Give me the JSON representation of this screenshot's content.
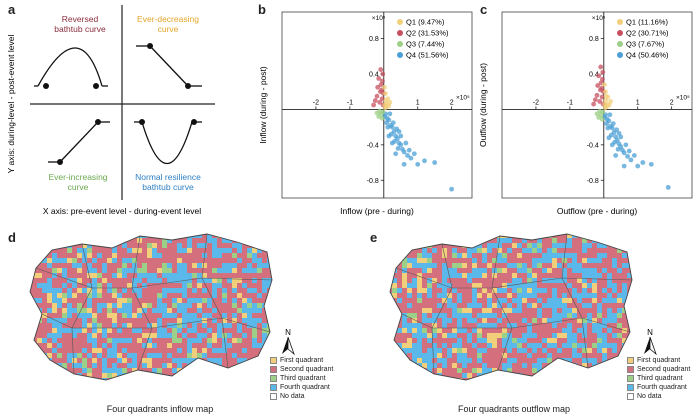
{
  "panel_letters": [
    "a",
    "b",
    "c",
    "d",
    "e"
  ],
  "panel_a": {
    "y_axis_label": "Y axis: during-level  -  post-event level",
    "x_axis_label": "X axis: pre-event level  -  during-event level",
    "quadrants": [
      {
        "label_lines": [
          "Reversed",
          "bathtub curve"
        ],
        "color": "#8a2d3b"
      },
      {
        "label_lines": [
          "Ever-decreasing",
          "curve"
        ],
        "color": "#e3a52a"
      },
      {
        "label_lines": [
          "Ever-increasing",
          "curve"
        ],
        "color": "#6ba84f"
      },
      {
        "label_lines": [
          "Normal resilience",
          "bathtub curve"
        ],
        "color": "#2b7fc4"
      }
    ]
  },
  "chart_data": [
    {
      "type": "scatter",
      "xlabel": "Inflow (pre - during)",
      "ylabel": "Inflow (during - post)",
      "x_exponent": "×10⁵",
      "y_exponent": "×10⁵",
      "xlim": [
        -3,
        2.6
      ],
      "ylim": [
        -1,
        1.1
      ],
      "x_ticks": [
        -2,
        -1,
        1,
        2
      ],
      "y_ticks": [
        0.8,
        0.4,
        -0.4,
        -0.8
      ],
      "x_tick_labels": [
        "-2",
        "-1",
        "1",
        "2"
      ],
      "y_tick_labels": [
        "0.8",
        "0.4",
        "-0.4",
        "-0.8"
      ],
      "legend_position": "top-right",
      "series": [
        {
          "name": "Q1",
          "legend": "Q1  (9.47%)",
          "color": "#f2cf7a"
        },
        {
          "name": "Q2",
          "legend": "Q2  (31.53%)",
          "color": "#c7505f"
        },
        {
          "name": "Q3",
          "legend": "Q3  (7.44%)",
          "color": "#9ccf87"
        },
        {
          "name": "Q4",
          "legend": "Q4  (51.56%)",
          "color": "#4a9fd6"
        }
      ],
      "points": {
        "Q1": [
          [
            0.03,
            0.05
          ],
          [
            0.06,
            0.1
          ],
          [
            0.1,
            0.06
          ],
          [
            0.05,
            0.18
          ],
          [
            0.12,
            0.12
          ],
          [
            0.08,
            0.03
          ],
          [
            0.15,
            0.04
          ],
          [
            0.02,
            0.25
          ],
          [
            0.04,
            0.02
          ],
          [
            0.18,
            0.08
          ]
        ],
        "Q2": [
          [
            -0.02,
            0.05
          ],
          [
            -0.05,
            0.12
          ],
          [
            -0.1,
            0.2
          ],
          [
            -0.08,
            0.28
          ],
          [
            -0.15,
            0.35
          ],
          [
            -0.03,
            0.4
          ],
          [
            -0.2,
            0.15
          ],
          [
            -0.12,
            0.08
          ],
          [
            -0.06,
            0.22
          ],
          [
            -0.25,
            0.1
          ],
          [
            -0.04,
            0.32
          ],
          [
            -0.09,
            0.45
          ],
          [
            -0.18,
            0.25
          ],
          [
            -0.3,
            0.05
          ],
          [
            -0.01,
            0.18
          ]
        ],
        "Q3": [
          [
            -0.03,
            -0.03
          ],
          [
            -0.08,
            -0.05
          ],
          [
            -0.12,
            -0.02
          ],
          [
            -0.05,
            -0.1
          ],
          [
            -0.2,
            -0.04
          ],
          [
            -0.15,
            -0.08
          ]
        ],
        "Q4": [
          [
            0.05,
            -0.05
          ],
          [
            0.1,
            -0.1
          ],
          [
            0.15,
            -0.12
          ],
          [
            0.2,
            -0.18
          ],
          [
            0.25,
            -0.2
          ],
          [
            0.3,
            -0.25
          ],
          [
            0.35,
            -0.3
          ],
          [
            0.4,
            -0.33
          ],
          [
            0.45,
            -0.38
          ],
          [
            0.5,
            -0.4
          ],
          [
            0.55,
            -0.45
          ],
          [
            0.6,
            -0.48
          ],
          [
            0.7,
            -0.52
          ],
          [
            0.8,
            -0.55
          ],
          [
            0.12,
            -0.2
          ],
          [
            0.22,
            -0.28
          ],
          [
            0.32,
            -0.36
          ],
          [
            0.42,
            -0.44
          ],
          [
            0.28,
            -0.15
          ],
          [
            0.38,
            -0.22
          ],
          [
            0.5,
            -0.3
          ],
          [
            0.18,
            -0.05
          ],
          [
            0.08,
            -0.15
          ],
          [
            0.65,
            -0.38
          ],
          [
            0.75,
            -0.46
          ],
          [
            1.0,
            -0.62
          ],
          [
            1.2,
            -0.58
          ],
          [
            0.9,
            -0.5
          ],
          [
            1.5,
            -0.6
          ],
          [
            2.0,
            -0.9
          ],
          [
            0.35,
            -0.5
          ],
          [
            0.6,
            -0.62
          ],
          [
            0.02,
            -0.08
          ],
          [
            0.15,
            -0.3
          ],
          [
            0.45,
            -0.25
          ],
          [
            0.25,
            -0.38
          ]
        ]
      }
    },
    {
      "type": "scatter",
      "xlabel": "Outflow (pre - during)",
      "ylabel": "Outflow (during - post)",
      "x_exponent": "×10⁵",
      "y_exponent": "×10⁵",
      "xlim": [
        -3,
        2.6
      ],
      "ylim": [
        -1,
        1.1
      ],
      "x_ticks": [
        -2,
        -1,
        1,
        2
      ],
      "y_ticks": [
        0.8,
        0.4,
        -0.4,
        -0.8
      ],
      "x_tick_labels": [
        "-2",
        "-1",
        "1",
        "2"
      ],
      "y_tick_labels": [
        "0.8",
        "0.4",
        "-0.4",
        "-0.8"
      ],
      "legend_position": "top-right",
      "series": [
        {
          "name": "Q1",
          "legend": "Q1  (11.16%)",
          "color": "#f2cf7a"
        },
        {
          "name": "Q2",
          "legend": "Q2  (30.71%)",
          "color": "#c7505f"
        },
        {
          "name": "Q3",
          "legend": "Q3  (7.67%)",
          "color": "#9ccf87"
        },
        {
          "name": "Q4",
          "legend": "Q4  (50.46%)",
          "color": "#4a9fd6"
        }
      ],
      "points": {
        "Q1": [
          [
            0.03,
            0.06
          ],
          [
            0.06,
            0.1
          ],
          [
            0.1,
            0.05
          ],
          [
            0.05,
            0.2
          ],
          [
            0.12,
            0.14
          ],
          [
            0.08,
            0.03
          ],
          [
            0.16,
            0.05
          ],
          [
            0.02,
            0.28
          ],
          [
            0.04,
            0.02
          ],
          [
            0.2,
            0.09
          ],
          [
            0.07,
            0.15
          ]
        ],
        "Q2": [
          [
            -0.02,
            0.06
          ],
          [
            -0.05,
            0.14
          ],
          [
            -0.1,
            0.22
          ],
          [
            -0.08,
            0.3
          ],
          [
            -0.15,
            0.38
          ],
          [
            -0.03,
            0.42
          ],
          [
            -0.2,
            0.16
          ],
          [
            -0.12,
            0.09
          ],
          [
            -0.06,
            0.24
          ],
          [
            -0.25,
            0.11
          ],
          [
            -0.04,
            0.34
          ],
          [
            -0.09,
            0.48
          ],
          [
            -0.18,
            0.27
          ],
          [
            -0.3,
            0.06
          ],
          [
            -0.01,
            0.2
          ]
        ],
        "Q3": [
          [
            -0.03,
            -0.03
          ],
          [
            -0.08,
            -0.06
          ],
          [
            -0.12,
            -0.02
          ],
          [
            -0.05,
            -0.11
          ],
          [
            -0.2,
            -0.05
          ],
          [
            -0.15,
            -0.09
          ]
        ],
        "Q4": [
          [
            0.05,
            -0.06
          ],
          [
            0.1,
            -0.11
          ],
          [
            0.15,
            -0.13
          ],
          [
            0.2,
            -0.19
          ],
          [
            0.25,
            -0.21
          ],
          [
            0.3,
            -0.26
          ],
          [
            0.35,
            -0.31
          ],
          [
            0.4,
            -0.35
          ],
          [
            0.45,
            -0.39
          ],
          [
            0.5,
            -0.42
          ],
          [
            0.55,
            -0.46
          ],
          [
            0.6,
            -0.49
          ],
          [
            0.7,
            -0.53
          ],
          [
            0.8,
            -0.57
          ],
          [
            0.12,
            -0.21
          ],
          [
            0.22,
            -0.29
          ],
          [
            0.32,
            -0.37
          ],
          [
            0.42,
            -0.45
          ],
          [
            0.28,
            -0.16
          ],
          [
            0.38,
            -0.23
          ],
          [
            0.5,
            -0.31
          ],
          [
            0.18,
            -0.06
          ],
          [
            0.08,
            -0.16
          ],
          [
            0.65,
            -0.4
          ],
          [
            0.75,
            -0.47
          ],
          [
            1.0,
            -0.64
          ],
          [
            1.15,
            -0.6
          ],
          [
            0.9,
            -0.52
          ],
          [
            1.4,
            -0.62
          ],
          [
            1.9,
            -0.88
          ],
          [
            0.35,
            -0.52
          ],
          [
            0.6,
            -0.64
          ],
          [
            0.02,
            -0.09
          ],
          [
            0.15,
            -0.32
          ],
          [
            0.45,
            -0.27
          ],
          [
            0.25,
            -0.4
          ]
        ]
      }
    }
  ],
  "maps": [
    {
      "caption": "Four quadrants inflow map"
    },
    {
      "caption": "Four quadrants outflow map"
    }
  ],
  "map_legend": [
    {
      "label": "First quadrant",
      "color": "#f2cf7a"
    },
    {
      "label": "Second quadrant",
      "color": "#d4707e"
    },
    {
      "label": "Third quadrant",
      "color": "#9ccf87"
    },
    {
      "label": "Fourth quadrant",
      "color": "#5bb8ea"
    },
    {
      "label": "No data",
      "color": "#ffffff"
    }
  ],
  "north_label": "N"
}
